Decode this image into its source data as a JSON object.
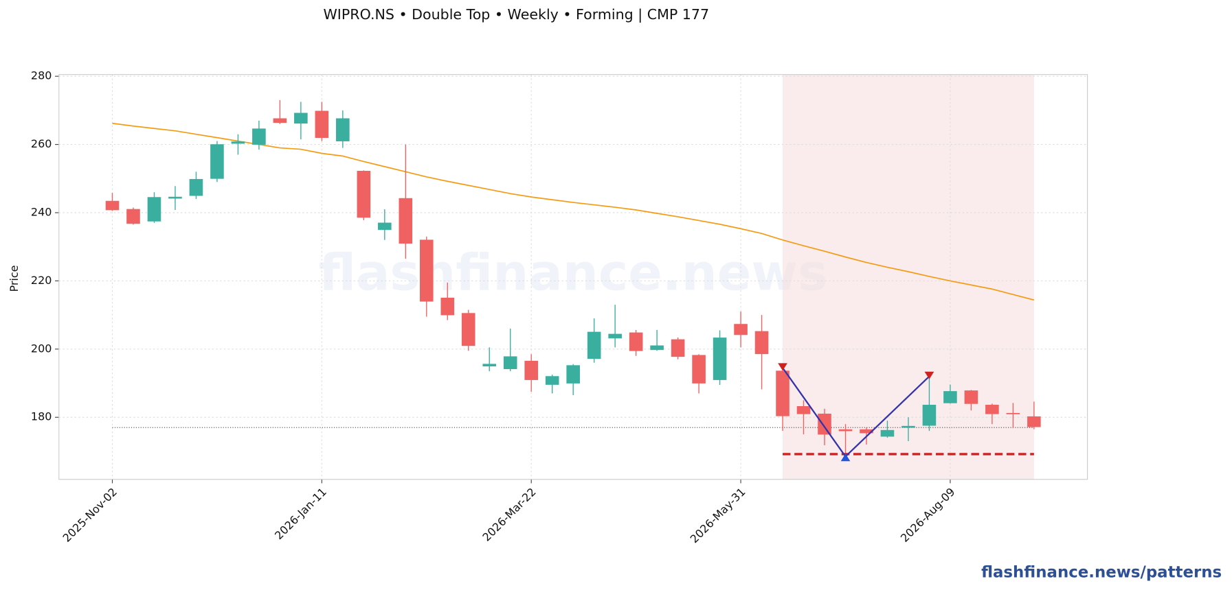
{
  "chart_data": {
    "type": "candlestick",
    "title": "WIPRO.NS  •  Double Top  •  Weekly  •  Forming  |  CMP 177",
    "ylabel": "Price",
    "watermark": "flashfinance.news",
    "footer": "flashfinance.news/patterns",
    "x": [
      "2025-Nov-02",
      "2025-Nov-09",
      "2025-Nov-16",
      "2025-Nov-23",
      "2025-Nov-30",
      "2025-Dec-07",
      "2025-Dec-14",
      "2025-Dec-21",
      "2025-Dec-28",
      "2026-Jan-04",
      "2026-Jan-11",
      "2026-Jan-18",
      "2026-Jan-25",
      "2026-Feb-01",
      "2026-Feb-08",
      "2026-Feb-15",
      "2026-Feb-22",
      "2026-Mar-01",
      "2026-Mar-08",
      "2026-Mar-15",
      "2026-Mar-22",
      "2026-Mar-29",
      "2026-Apr-05",
      "2026-Apr-12",
      "2026-Apr-19",
      "2026-Apr-26",
      "2026-May-03",
      "2026-May-10",
      "2026-May-17",
      "2026-May-24",
      "2026-May-31",
      "2026-Jun-07",
      "2026-Jun-14",
      "2026-Jun-21",
      "2026-Jun-28",
      "2026-Jul-05",
      "2026-Jul-12",
      "2026-Jul-19",
      "2026-Jul-26",
      "2026-Aug-02",
      "2026-Aug-09",
      "2026-Aug-16",
      "2026-Aug-23",
      "2026-Aug-30",
      "2026-Sep-06"
    ],
    "open": [
      243.4,
      241,
      237.5,
      244.2,
      245,
      250,
      260.3,
      260,
      267.6,
      266.2,
      269.8,
      261,
      252.2,
      235,
      244.2,
      232,
      215,
      210.5,
      195,
      194.2,
      196.5,
      189.6,
      190,
      197.2,
      203.2,
      204.8,
      199.8,
      202.8,
      198.2,
      191,
      207.3,
      205.2,
      193.6,
      183.2,
      181,
      176.4,
      176.4,
      174.4,
      177,
      177.6,
      184.2,
      187.8,
      183.6,
      181.2,
      180.2
    ],
    "high": [
      245.8,
      241.5,
      246,
      247.8,
      252,
      261,
      263,
      267,
      273,
      272.5,
      272.5,
      270,
      252.4,
      241,
      260,
      233,
      219.5,
      211.5,
      200.5,
      206,
      198.5,
      192.5,
      195.6,
      209,
      213,
      205.6,
      205.6,
      203.4,
      198.5,
      205.5,
      211,
      210,
      194,
      185,
      182.5,
      178,
      177,
      179,
      180,
      191.5,
      189.6,
      188,
      184,
      184.2,
      184.6
    ],
    "low": [
      240.5,
      236.5,
      237,
      240.8,
      244,
      249,
      257,
      258.5,
      266,
      261.5,
      261,
      259,
      237.8,
      232,
      226.5,
      209.5,
      208.5,
      199.5,
      193.5,
      193.5,
      187.5,
      187,
      186.5,
      196,
      200.5,
      198,
      199.5,
      197,
      187,
      189.5,
      200.5,
      188.2,
      176,
      175,
      171.8,
      168.5,
      172,
      174,
      173,
      176,
      184,
      182,
      178,
      176.8,
      176.5
    ],
    "close": [
      240.8,
      236.8,
      244.5,
      244.6,
      249.8,
      260,
      260.8,
      264.6,
      266.4,
      269.2,
      262,
      267.6,
      238.6,
      237,
      231,
      214,
      210,
      201,
      195.6,
      197.8,
      191,
      192,
      195.2,
      205,
      204.4,
      199.5,
      201,
      197.8,
      190,
      203.3,
      204.2,
      198.6,
      180.4,
      181,
      175,
      176,
      175.4,
      176.2,
      177.4,
      183.6,
      187.6,
      184,
      181,
      181,
      177.2
    ],
    "up_color": "#3aafa0",
    "down_color": "#f06262",
    "moving_average": {
      "color": "#f59b12",
      "values": [
        266.2,
        265.4,
        264.7,
        264,
        263,
        262,
        261,
        260,
        259,
        258.6,
        257.4,
        256.6,
        255,
        253.5,
        252,
        250.5,
        249.2,
        248,
        246.8,
        245.6,
        244.6,
        243.8,
        243,
        242.3,
        241.6,
        240.8,
        239.8,
        238.8,
        237.7,
        236.6,
        235.3,
        233.9,
        232,
        230.3,
        228.7,
        227,
        225.4,
        224,
        222.7,
        221.3,
        220,
        218.8,
        217.6,
        216,
        214.4
      ]
    },
    "cmp_line": {
      "value": 177,
      "color": "#444444"
    },
    "pattern_zone": {
      "start": "2026-Jun-14",
      "end": "2026-Sep-06",
      "color": "#f6dcdc"
    },
    "neckline": {
      "value": 169.2,
      "start": "2026-Jun-14",
      "end": "2026-Sep-06",
      "color": "#cc2222"
    },
    "pattern_line": {
      "color": "#3333aa",
      "x": [
        "2026-Jun-14",
        "2026-Jul-05",
        "2026-Aug-02"
      ],
      "values": [
        194.5,
        168.5,
        192
      ],
      "marker_colors": [
        "#cc2222",
        "#2255dd",
        "#cc2222"
      ]
    },
    "ylim": [
      161.8,
      280.5
    ],
    "yticks": [
      180,
      200,
      220,
      240,
      260,
      280
    ],
    "xticks": [
      "2025-Nov-02",
      "2026-Jan-11",
      "2026-Mar-22",
      "2026-May-31",
      "2026-Aug-09"
    ],
    "grid": true
  }
}
